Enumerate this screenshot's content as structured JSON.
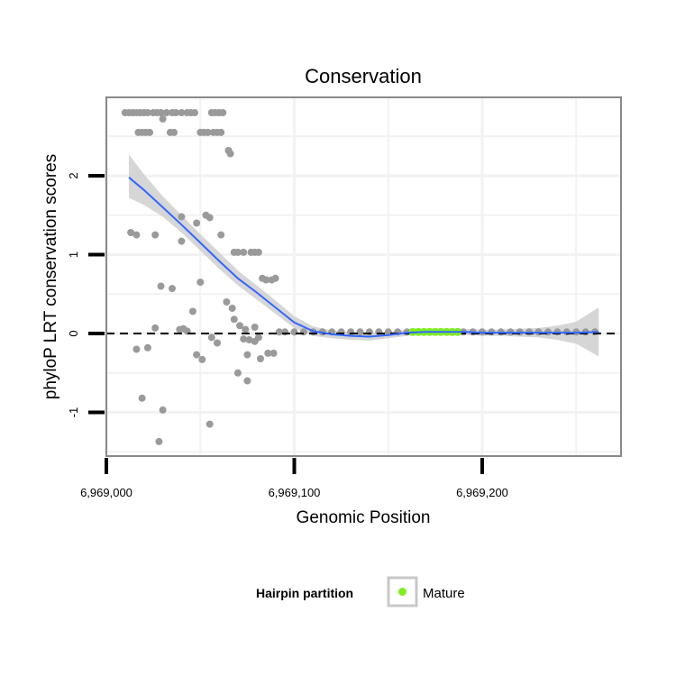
{
  "chart_data": {
    "type": "scatter",
    "title": "Conservation",
    "xlabel": "Genomic Position",
    "ylabel": "phyloP LRT conservation scores",
    "xlim": [
      6969000,
      6969275
    ],
    "ylim": [
      -1.55,
      3.0
    ],
    "x_ticks": [
      {
        "value": 6969000,
        "label": "6,969,000"
      },
      {
        "value": 6969100,
        "label": "6,969,100"
      },
      {
        "value": 6969200,
        "label": "6,969,200"
      }
    ],
    "y_ticks": [
      {
        "value": -1,
        "label": "-1"
      },
      {
        "value": 0,
        "label": "0"
      },
      {
        "value": 1,
        "label": "1"
      },
      {
        "value": 2,
        "label": "2"
      }
    ],
    "hline": 0,
    "colors": {
      "points": "#9a9a9a",
      "mature": "#80ee22",
      "smooth": "#3366ff",
      "ribbon": "#cfcfcf",
      "panel_border": "#8a8a8a",
      "grid": "#f2f2f2"
    },
    "points_gray": [
      [
        6969010,
        2.8
      ],
      [
        6969012,
        2.8
      ],
      [
        6969014,
        2.8
      ],
      [
        6969016,
        2.8
      ],
      [
        6969018,
        2.8
      ],
      [
        6969020,
        2.8
      ],
      [
        6969022,
        2.8
      ],
      [
        6969025,
        2.8
      ],
      [
        6969027,
        2.8
      ],
      [
        6969029,
        2.8
      ],
      [
        6969032,
        2.8
      ],
      [
        6969035,
        2.8
      ],
      [
        6969037,
        2.8
      ],
      [
        6969040,
        2.8
      ],
      [
        6969043,
        2.8
      ],
      [
        6969045,
        2.8
      ],
      [
        6969047,
        2.8
      ],
      [
        6969056,
        2.8
      ],
      [
        6969058,
        2.8
      ],
      [
        6969060,
        2.8
      ],
      [
        6969062,
        2.8
      ],
      [
        6969030,
        2.72
      ],
      [
        6969017,
        2.55
      ],
      [
        6969019,
        2.55
      ],
      [
        6969021,
        2.55
      ],
      [
        6969023,
        2.55
      ],
      [
        6969034,
        2.55
      ],
      [
        6969036,
        2.55
      ],
      [
        6969050,
        2.55
      ],
      [
        6969052,
        2.55
      ],
      [
        6969054,
        2.55
      ],
      [
        6969057,
        2.55
      ],
      [
        6969059,
        2.55
      ],
      [
        6969061,
        2.55
      ],
      [
        6969065,
        2.32
      ],
      [
        6969066,
        2.28
      ],
      [
        6969040,
        1.48
      ],
      [
        6969053,
        1.5
      ],
      [
        6969055,
        1.47
      ],
      [
        6969048,
        1.4
      ],
      [
        6969013,
        1.28
      ],
      [
        6969016,
        1.25
      ],
      [
        6969026,
        1.25
      ],
      [
        6969061,
        1.25
      ],
      [
        6969040,
        1.17
      ],
      [
        6969068,
        1.03
      ],
      [
        6969070,
        1.03
      ],
      [
        6969073,
        1.03
      ],
      [
        6969077,
        1.03
      ],
      [
        6969079,
        1.03
      ],
      [
        6969081,
        1.03
      ],
      [
        6969083,
        0.7
      ],
      [
        6969085,
        0.68
      ],
      [
        6969088,
        0.68
      ],
      [
        6969090,
        0.7
      ],
      [
        6969050,
        0.65
      ],
      [
        6969029,
        0.6
      ],
      [
        6969035,
        0.57
      ],
      [
        6969064,
        0.4
      ],
      [
        6969067,
        0.32
      ],
      [
        6969046,
        0.28
      ],
      [
        6969068,
        0.18
      ],
      [
        6969026,
        0.07
      ],
      [
        6969039,
        0.05
      ],
      [
        6969043,
        0.03
      ],
      [
        6969041,
        0.06
      ],
      [
        6969071,
        0.1
      ],
      [
        6969074,
        0.05
      ],
      [
        6969079,
        0.08
      ],
      [
        6969056,
        -0.05
      ],
      [
        6969073,
        -0.07
      ],
      [
        6969076,
        -0.08
      ],
      [
        6969079,
        -0.1
      ],
      [
        6969059,
        -0.12
      ],
      [
        6969081,
        -0.05
      ],
      [
        6969016,
        -0.2
      ],
      [
        6969022,
        -0.18
      ],
      [
        6969048,
        -0.27
      ],
      [
        6969051,
        -0.33
      ],
      [
        6969075,
        -0.27
      ],
      [
        6969082,
        -0.32
      ],
      [
        6969086,
        -0.25
      ],
      [
        6969089,
        -0.25
      ],
      [
        6969070,
        -0.5
      ],
      [
        6969075,
        -0.6
      ],
      [
        6969019,
        -0.82
      ],
      [
        6969030,
        -0.97
      ],
      [
        6969055,
        -1.15
      ],
      [
        6969028,
        -1.37
      ],
      [
        6969092,
        0.02
      ],
      [
        6969095,
        0.02
      ],
      [
        6969100,
        0.02
      ],
      [
        6969105,
        0.02
      ],
      [
        6969110,
        0.02
      ],
      [
        6969115,
        0.02
      ],
      [
        6969120,
        0.02
      ],
      [
        6969125,
        0.02
      ],
      [
        6969130,
        0.02
      ],
      [
        6969135,
        0.02
      ],
      [
        6969140,
        0.02
      ],
      [
        6969145,
        0.02
      ],
      [
        6969150,
        0.02
      ],
      [
        6969155,
        0.02
      ],
      [
        6969160,
        0.02
      ],
      [
        6969190,
        0.02
      ],
      [
        6969195,
        0.02
      ],
      [
        6969200,
        0.02
      ],
      [
        6969205,
        0.02
      ],
      [
        6969210,
        0.02
      ],
      [
        6969215,
        0.02
      ],
      [
        6969220,
        0.02
      ],
      [
        6969225,
        0.02
      ],
      [
        6969230,
        0.02
      ],
      [
        6969235,
        0.02
      ],
      [
        6969240,
        0.02
      ],
      [
        6969245,
        0.02
      ],
      [
        6969250,
        0.02
      ],
      [
        6969255,
        0.02
      ],
      [
        6969260,
        0.02
      ]
    ],
    "points_mature": [
      [
        6969163,
        0.02
      ],
      [
        6969166,
        0.02
      ],
      [
        6969169,
        0.02
      ],
      [
        6969172,
        0.02
      ],
      [
        6969175,
        0.02
      ],
      [
        6969178,
        0.02
      ],
      [
        6969181,
        0.02
      ],
      [
        6969184,
        0.02
      ],
      [
        6969187,
        0.02
      ]
    ],
    "smooth_line": {
      "x": [
        6969012,
        6969020,
        6969030,
        6969040,
        6969050,
        6969060,
        6969070,
        6969080,
        6969090,
        6969100,
        6969110,
        6969120,
        6969130,
        6969140,
        6969150,
        6969160,
        6969170,
        6969180,
        6969190,
        6969200,
        6969210,
        6969220,
        6969230,
        6969240,
        6969250,
        6969262
      ],
      "y": [
        1.98,
        1.82,
        1.6,
        1.38,
        1.15,
        0.92,
        0.7,
        0.52,
        0.33,
        0.14,
        0.03,
        -0.01,
        -0.03,
        -0.04,
        -0.02,
        0.01,
        0.02,
        0.02,
        0.02,
        0.01,
        0.01,
        0.01,
        0.01,
        0.01,
        0.01,
        0.02
      ],
      "lower": [
        1.72,
        1.63,
        1.48,
        1.28,
        1.05,
        0.82,
        0.61,
        0.43,
        0.25,
        0.07,
        -0.03,
        -0.06,
        -0.08,
        -0.09,
        -0.06,
        -0.03,
        -0.02,
        -0.02,
        -0.02,
        -0.03,
        -0.03,
        -0.04,
        -0.05,
        -0.08,
        -0.13,
        -0.29
      ],
      "upper": [
        2.27,
        2.02,
        1.74,
        1.5,
        1.26,
        1.03,
        0.8,
        0.61,
        0.42,
        0.22,
        0.09,
        0.04,
        0.02,
        0.01,
        0.02,
        0.05,
        0.06,
        0.06,
        0.06,
        0.05,
        0.05,
        0.06,
        0.07,
        0.1,
        0.15,
        0.33
      ]
    },
    "legend": {
      "title": "Hairpin partition",
      "items": [
        {
          "label": "Mature",
          "color": "#80ee22"
        }
      ],
      "position": "bottom"
    }
  }
}
